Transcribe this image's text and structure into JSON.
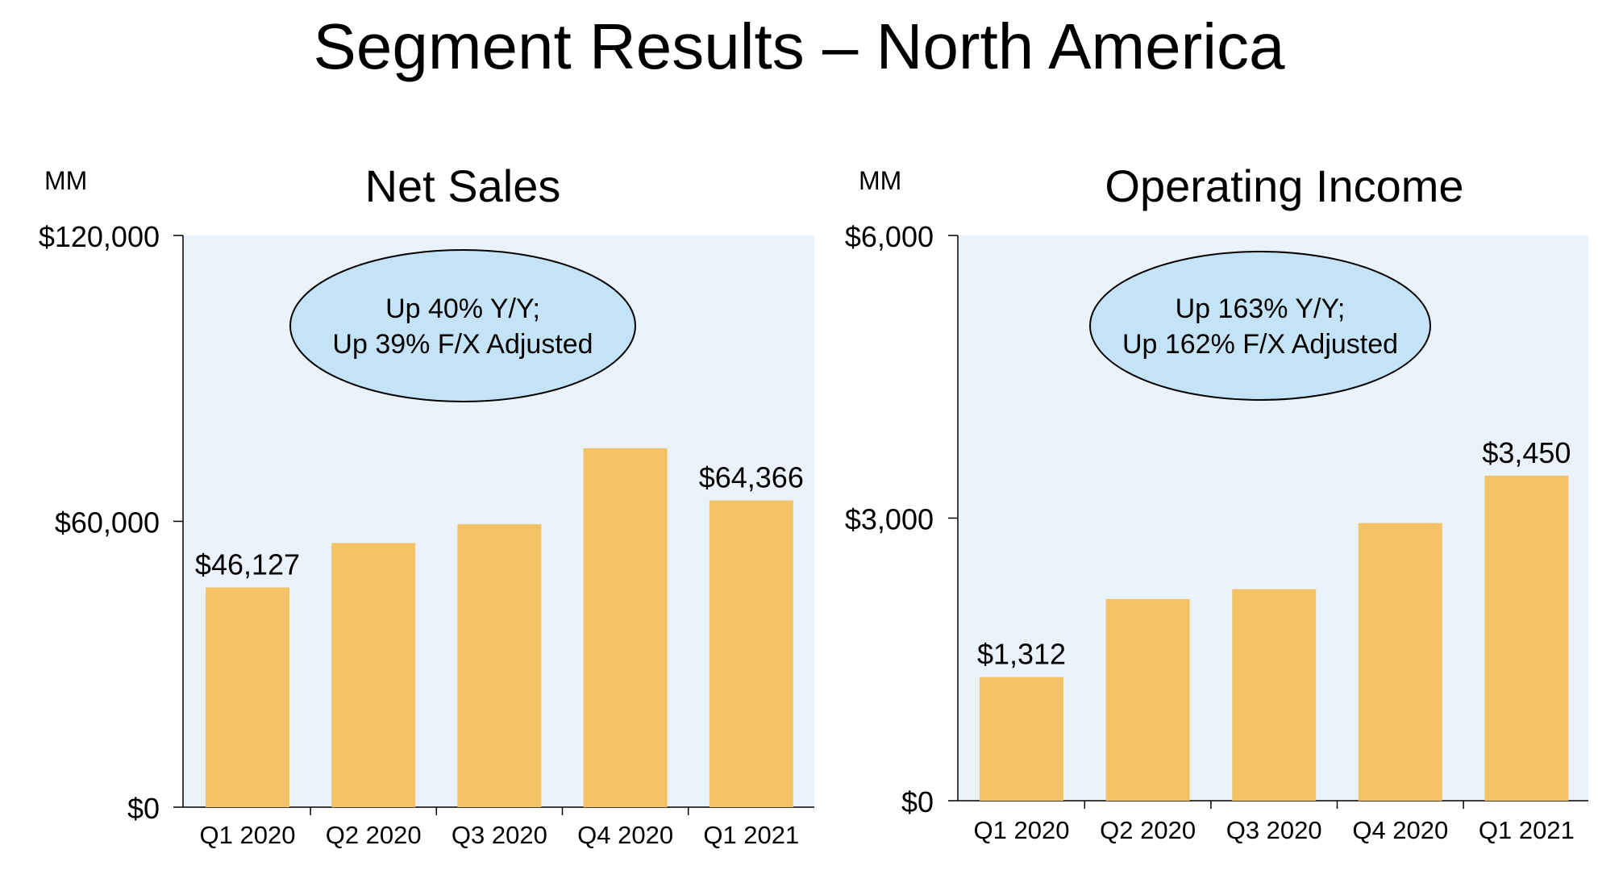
{
  "title": "Segment Results – North America",
  "colors": {
    "plot_bg": "#eaf2fb",
    "bar": "#f2c264",
    "callout": "#c5e3f6",
    "axis": "#000000"
  },
  "chart_data": [
    {
      "type": "bar",
      "title": "Net Sales",
      "unit_label": "MM",
      "categories": [
        "Q1 2020",
        "Q2 2020",
        "Q3 2020",
        "Q4 2020",
        "Q1 2021"
      ],
      "values": [
        46127,
        55436,
        59373,
        75346,
        64366
      ],
      "data_labels": [
        "$46,127",
        "",
        "",
        "",
        "$64,366"
      ],
      "ylim": [
        0,
        120000
      ],
      "yticks": [
        0,
        60000,
        120000
      ],
      "ytick_labels": [
        "$0",
        "$60,000",
        "$120,000"
      ],
      "callout": [
        "Up 40% Y/Y;",
        "Up 39% F/X Adjusted"
      ]
    },
    {
      "type": "bar",
      "title": "Operating Income",
      "unit_label": "MM",
      "categories": [
        "Q1 2020",
        "Q2 2020",
        "Q3 2020",
        "Q4 2020",
        "Q1 2021"
      ],
      "values": [
        1312,
        2141,
        2245,
        2947,
        3450
      ],
      "data_labels": [
        "$1,312",
        "",
        "",
        "",
        "$3,450"
      ],
      "ylim": [
        0,
        6000
      ],
      "yticks": [
        0,
        3000,
        6000
      ],
      "ytick_labels": [
        "$0",
        "$3,000",
        "$6,000"
      ],
      "callout": [
        "Up 163% Y/Y;",
        "Up 162% F/X Adjusted"
      ]
    }
  ]
}
